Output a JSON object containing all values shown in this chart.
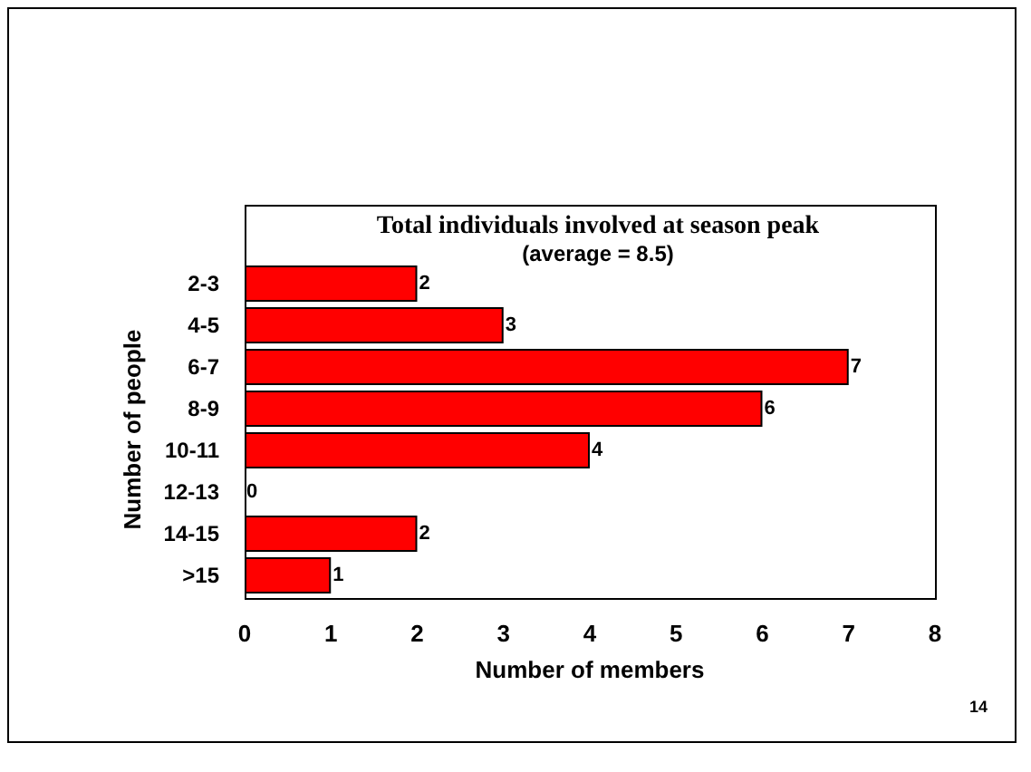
{
  "chart_data": {
    "type": "bar",
    "orientation": "horizontal",
    "title": "Total individuals involved at season peak",
    "subtitle": "(average = 8.5)",
    "xlabel": "Number of members",
    "ylabel": "Number of people",
    "categories": [
      "2-3",
      "4-5",
      "6-7",
      "8-9",
      "10-11",
      "12-13",
      "14-15",
      ">15"
    ],
    "values": [
      2,
      3,
      7,
      6,
      4,
      0,
      2,
      1
    ],
    "color": "#ff0000",
    "data_labels": true,
    "xlim": [
      0,
      8
    ],
    "xticks": [
      0,
      1,
      2,
      3,
      4,
      5,
      6,
      7,
      8
    ],
    "grid": false,
    "annotations": [
      "14"
    ]
  }
}
